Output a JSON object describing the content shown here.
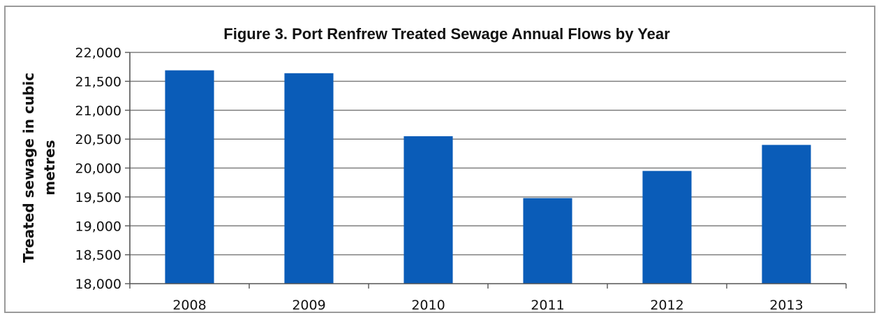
{
  "chart_data": {
    "type": "bar",
    "title": "Figure 3.  Port Renfrew Treated Sewage Annual Flows by Year",
    "ylabel_lines": [
      "Treated sewage in cubic",
      "metres"
    ],
    "xlabel": "",
    "categories": [
      "2008",
      "2009",
      "2010",
      "2011",
      "2012",
      "2013"
    ],
    "values": [
      21690,
      21640,
      20550,
      19480,
      19950,
      20400
    ],
    "ylim": [
      18000,
      22000
    ],
    "yticks": [
      18000,
      18500,
      19000,
      19500,
      20000,
      20500,
      21000,
      21500,
      22000
    ],
    "ytick_labels": [
      "18,000",
      "18,500",
      "19,000",
      "19,500",
      "20,000",
      "20,500",
      "21,000",
      "21,500",
      "22,000"
    ],
    "grid": true,
    "legend": "none",
    "bar_color": "#0a5cb8",
    "grid_color": "#7f7f7f"
  }
}
